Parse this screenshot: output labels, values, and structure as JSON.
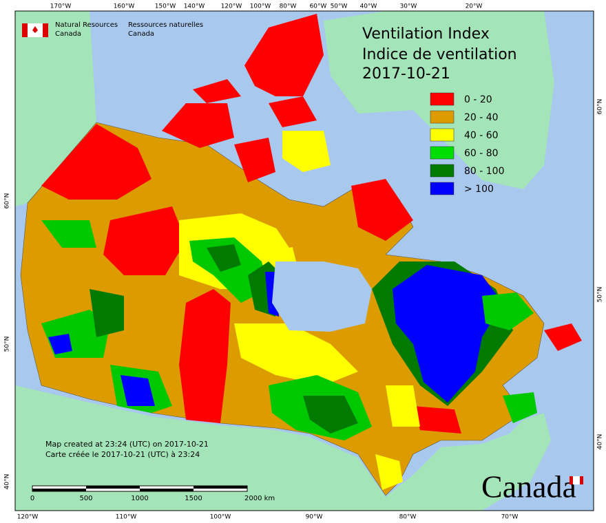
{
  "header": {
    "agency_en": [
      "Natural Resources",
      "Canada"
    ],
    "agency_fr": [
      "Ressources naturelles",
      "Canada"
    ]
  },
  "title": [
    "Ventilation Index",
    "Indice de ventilation",
    "2017-10-21"
  ],
  "legend": [
    {
      "label": "0 - 20",
      "color": "#ff0000"
    },
    {
      "label": "20 - 40",
      "color": "#dc9c00"
    },
    {
      "label": "40 - 60",
      "color": "#ffff00"
    },
    {
      "label": "60 - 80",
      "color": "#00dd00"
    },
    {
      "label": "80 - 100",
      "color": "#007a00"
    },
    {
      "label": "> 100",
      "color": "#0000ff"
    }
  ],
  "top_longitudes": [
    "170°W",
    "160°W",
    "150°W",
    "140°W",
    "120°W",
    "100°W",
    "80°W",
    "60°W",
    "50°W",
    "40°W",
    "30°W",
    "20°W"
  ],
  "bottom_longitudes": [
    "120°W",
    "110°W",
    "100°W",
    "90°W",
    "80°W",
    "70°W"
  ],
  "left_latitudes": [
    "60°N",
    "50°N",
    "40°N"
  ],
  "right_latitudes": [
    "60°N",
    "50°N",
    "40°N"
  ],
  "notes": [
    "Map created at 23:24 (UTC) on 2017-10-21",
    "Carte créée le 2017-10-21 (UTC) à 23:24"
  ],
  "scale_bar": [
    "0",
    "500",
    "1000",
    "1500",
    "2000 km"
  ],
  "wordmark": "Canada"
}
